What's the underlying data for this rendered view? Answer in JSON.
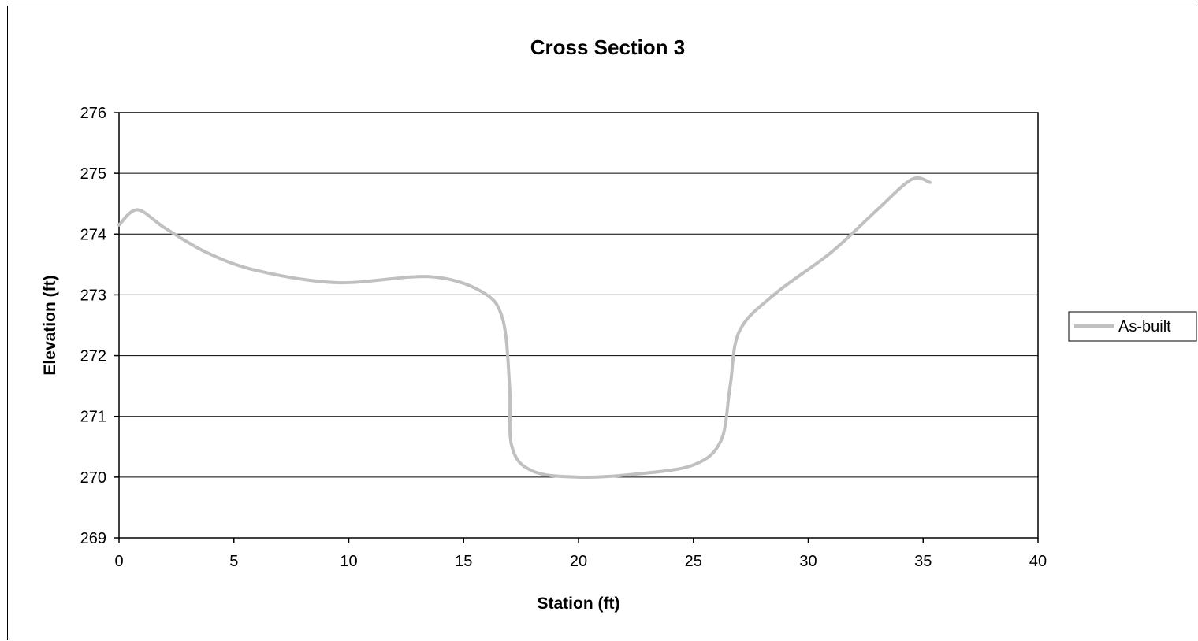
{
  "chart_data": {
    "type": "line",
    "title": "Cross Section 3",
    "xlabel": "Station (ft)",
    "ylabel": "Elevation (ft)",
    "xlim": [
      0,
      40
    ],
    "ylim": [
      269,
      276
    ],
    "x_ticks": [
      "0",
      "5",
      "10",
      "15",
      "20",
      "25",
      "30",
      "35",
      "40"
    ],
    "y_ticks": [
      "269",
      "270",
      "271",
      "272",
      "273",
      "274",
      "275",
      "276"
    ],
    "grid": "horizontal",
    "legend_position": "right",
    "series": [
      {
        "name": "As-built",
        "color": "#c0c0c0",
        "smooth": true,
        "points": [
          {
            "x": 0.0,
            "y": 274.15
          },
          {
            "x": 0.8,
            "y": 274.4
          },
          {
            "x": 2.0,
            "y": 274.1
          },
          {
            "x": 3.8,
            "y": 273.7
          },
          {
            "x": 6.0,
            "y": 273.4
          },
          {
            "x": 9.5,
            "y": 273.2
          },
          {
            "x": 13.5,
            "y": 273.3
          },
          {
            "x": 15.8,
            "y": 273.05
          },
          {
            "x": 16.7,
            "y": 272.6
          },
          {
            "x": 17.0,
            "y": 271.5
          },
          {
            "x": 17.1,
            "y": 270.5
          },
          {
            "x": 18.0,
            "y": 270.1
          },
          {
            "x": 20.0,
            "y": 270.0
          },
          {
            "x": 22.5,
            "y": 270.05
          },
          {
            "x": 25.0,
            "y": 270.2
          },
          {
            "x": 26.2,
            "y": 270.6
          },
          {
            "x": 26.6,
            "y": 271.5
          },
          {
            "x": 27.0,
            "y": 272.4
          },
          {
            "x": 28.5,
            "y": 273.0
          },
          {
            "x": 31.0,
            "y": 273.7
          },
          {
            "x": 33.0,
            "y": 274.4
          },
          {
            "x": 34.5,
            "y": 274.9
          },
          {
            "x": 35.3,
            "y": 274.85
          }
        ]
      }
    ]
  }
}
